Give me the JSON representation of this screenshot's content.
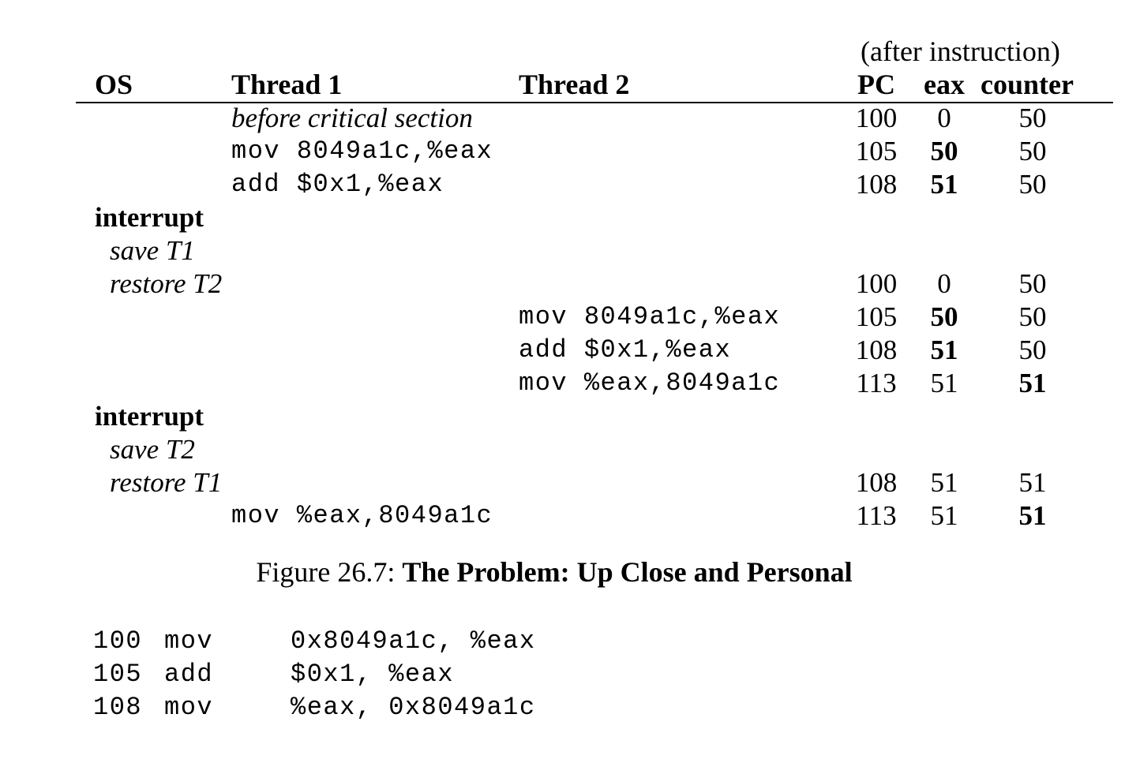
{
  "table": {
    "header_note": "(after instruction)",
    "columns": [
      "OS",
      "Thread 1",
      "Thread 2",
      "PC",
      "eax",
      "counter"
    ],
    "rows": [
      {
        "os": "",
        "t1": "before critical section",
        "t2": "",
        "pc": "100",
        "eax": "0",
        "counter": "50",
        "eax_bold": false,
        "counter_bold": false
      },
      {
        "os": "",
        "t1": "mov 8049a1c,%eax",
        "t2": "",
        "pc": "105",
        "eax": "50",
        "counter": "50",
        "eax_bold": true,
        "counter_bold": false
      },
      {
        "os": "",
        "t1": "add $0x1,%eax",
        "t2": "",
        "pc": "108",
        "eax": "51",
        "counter": "50",
        "eax_bold": true,
        "counter_bold": false
      },
      {
        "os": "interrupt",
        "t1": "",
        "t2": "",
        "pc": "",
        "eax": "",
        "counter": ""
      },
      {
        "os": "save T1",
        "t1": "",
        "t2": "",
        "pc": "",
        "eax": "",
        "counter": ""
      },
      {
        "os": "restore T2",
        "t1": "",
        "t2": "",
        "pc": "100",
        "eax": "0",
        "counter": "50",
        "eax_bold": false,
        "counter_bold": false
      },
      {
        "os": "",
        "t1": "",
        "t2": "mov 8049a1c,%eax",
        "pc": "105",
        "eax": "50",
        "counter": "50",
        "eax_bold": true,
        "counter_bold": false
      },
      {
        "os": "",
        "t1": "",
        "t2": "add $0x1,%eax",
        "pc": "108",
        "eax": "51",
        "counter": "50",
        "eax_bold": true,
        "counter_bold": false
      },
      {
        "os": "",
        "t1": "",
        "t2": "mov %eax,8049a1c",
        "pc": "113",
        "eax": "51",
        "counter": "51",
        "eax_bold": false,
        "counter_bold": true
      },
      {
        "os": "interrupt",
        "t1": "",
        "t2": "",
        "pc": "",
        "eax": "",
        "counter": ""
      },
      {
        "os": "save T2",
        "t1": "",
        "t2": "",
        "pc": "",
        "eax": "",
        "counter": ""
      },
      {
        "os": "restore T1",
        "t1": "",
        "t2": "",
        "pc": "108",
        "eax": "51",
        "counter": "51",
        "eax_bold": false,
        "counter_bold": false
      },
      {
        "os": "",
        "t1": "mov %eax,8049a1c",
        "t2": "",
        "pc": "113",
        "eax": "51",
        "counter": "51",
        "eax_bold": false,
        "counter_bold": true
      }
    ]
  },
  "caption": {
    "prefix": "Figure 26.7: ",
    "title": "The Problem: Up Close and Personal"
  },
  "assembly": [
    {
      "addr": "100",
      "op": "mov",
      "args": "0x8049a1c, %eax"
    },
    {
      "addr": "105",
      "op": "add",
      "args": "$0x1, %eax"
    },
    {
      "addr": "108",
      "op": "mov",
      "args": "%eax, 0x8049a1c"
    }
  ]
}
